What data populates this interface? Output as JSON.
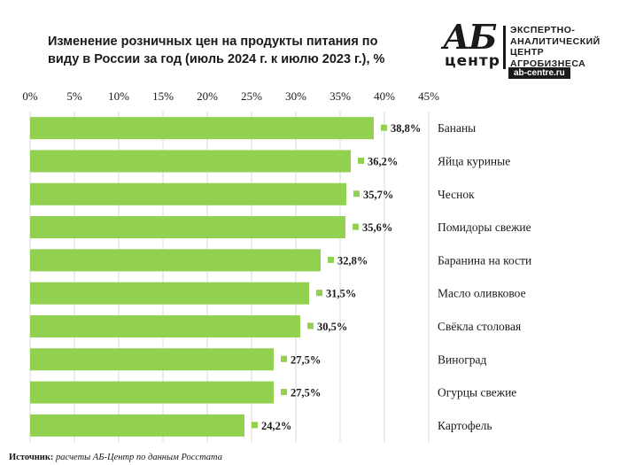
{
  "title": "Изменение розничных цен на продукты питания по виду в России за год (июль 2024 г. к июлю 2023 г.), %",
  "logo": {
    "ab": "АБ",
    "centr": "центр",
    "line1": "ЭКСПЕРТНО-",
    "line2": "АНАЛИТИЧЕСКИЙ",
    "line3": "ЦЕНТР",
    "line4": "АГРОБИЗНЕСА",
    "site": "ab-centre.ru"
  },
  "source": {
    "label": "Источник:",
    "text": "расчеты АБ-Центр по данным Росстата"
  },
  "chart_data": {
    "type": "bar",
    "orientation": "horizontal",
    "categories": [
      "Бананы",
      "Яйца куриные",
      "Чеснок",
      "Помидоры свежие",
      "Баранина на кости",
      "Масло оливковое",
      "Свёкла столовая",
      "Виноград",
      "Огурцы свежие",
      "Картофель"
    ],
    "values": [
      38.8,
      36.2,
      35.7,
      35.6,
      32.8,
      31.5,
      30.5,
      27.5,
      27.5,
      24.2
    ],
    "data_labels": [
      "38,8%",
      "36,2%",
      "35,7%",
      "35,6%",
      "32,8%",
      "31,5%",
      "30,5%",
      "27,5%",
      "27,5%",
      "24,2%"
    ],
    "xlim": [
      0,
      45
    ],
    "ticks": [
      0,
      5,
      10,
      15,
      20,
      25,
      30,
      35,
      40,
      45
    ],
    "tick_labels": [
      "0%",
      "5%",
      "10%",
      "15%",
      "20%",
      "25%",
      "30%",
      "35%",
      "40%",
      "45%"
    ],
    "axis_position": "top",
    "grid": true,
    "bar_color": "#92d050",
    "grid_color": "#d9d9d9"
  }
}
